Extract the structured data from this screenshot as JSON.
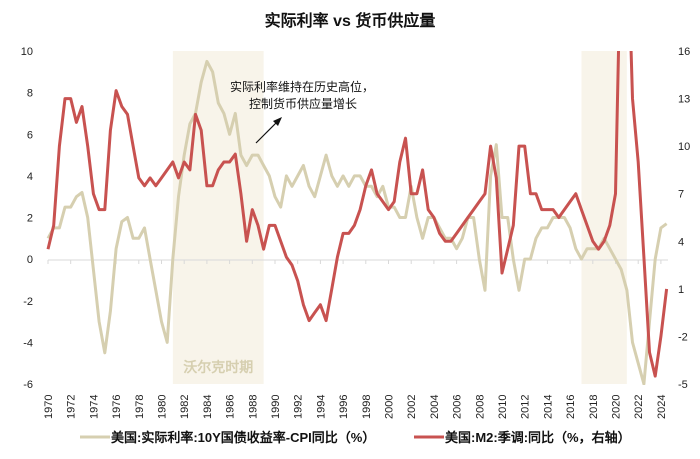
{
  "chart_data": {
    "type": "line",
    "title": "实际利率 vs 货币供应量",
    "x_ticks": [
      "1970",
      "1972",
      "1974",
      "1976",
      "1978",
      "1980",
      "1982",
      "1984",
      "1986",
      "1988",
      "1990",
      "1992",
      "1994",
      "1996",
      "1998",
      "2000",
      "2002",
      "2004",
      "2006",
      "2008",
      "2010",
      "2012",
      "2014",
      "2016",
      "2018",
      "2020",
      "2022",
      "2024"
    ],
    "y_left": {
      "range": [
        -6,
        10
      ],
      "ticks": [
        -6,
        -4,
        -2,
        0,
        2,
        4,
        6,
        8,
        10
      ]
    },
    "y_right": {
      "range": [
        -5,
        16
      ],
      "ticks": [
        -5,
        -2,
        1,
        4,
        7,
        10,
        13,
        16
      ]
    },
    "grid": false,
    "legend_position": "bottom",
    "shaded_periods": [
      {
        "start": 1981,
        "end": 1989,
        "label": "沃尔克时期"
      },
      {
        "start": 2017,
        "end": 2021,
        "label": ""
      }
    ],
    "annotation": {
      "lines": [
        "实际利率维持在历史高位，",
        "控制货币供应量增长"
      ]
    },
    "colors": {
      "real_rate": "#d6cfb0",
      "m2": "#c85250",
      "shade": "#f8f4ea"
    },
    "x": [
      1970,
      1970.5,
      1971,
      1971.5,
      1972,
      1972.5,
      1973,
      1973.5,
      1974,
      1974.5,
      1975,
      1975.5,
      1976,
      1976.5,
      1977,
      1977.5,
      1978,
      1978.5,
      1979,
      1979.5,
      1980,
      1980.5,
      1981,
      1981.5,
      1982,
      1982.5,
      1983,
      1983.5,
      1984,
      1984.5,
      1985,
      1985.5,
      1986,
      1986.5,
      1987,
      1987.5,
      1988,
      1988.5,
      1989,
      1989.5,
      1990,
      1990.5,
      1991,
      1991.5,
      1992,
      1992.5,
      1993,
      1993.5,
      1994,
      1994.5,
      1995,
      1995.5,
      1996,
      1996.5,
      1997,
      1997.5,
      1998,
      1998.5,
      1999,
      1999.5,
      2000,
      2000.5,
      2001,
      2001.5,
      2002,
      2002.5,
      2003,
      2003.5,
      2004,
      2004.5,
      2005,
      2005.5,
      2006,
      2006.5,
      2007,
      2007.5,
      2008,
      2008.5,
      2009,
      2009.5,
      2010,
      2010.5,
      2011,
      2011.5,
      2012,
      2012.5,
      2013,
      2013.5,
      2014,
      2014.5,
      2015,
      2015.5,
      2016,
      2016.5,
      2017,
      2017.5,
      2018,
      2018.5,
      2019,
      2019.5,
      2020,
      2020.5,
      2021,
      2021.5,
      2022,
      2022.5,
      2023,
      2023.5,
      2024,
      2024.5
    ],
    "series": [
      {
        "name": "美国:实际利率:10Y国债收益率-CPI同比（%）",
        "axis": "left",
        "values": [
          1.0,
          1.5,
          1.5,
          2.5,
          2.5,
          3.0,
          3.2,
          2.0,
          -0.5,
          -3.0,
          -4.5,
          -2.5,
          0.5,
          1.8,
          2.0,
          1.0,
          1.0,
          1.5,
          0,
          -1.5,
          -3.0,
          -4.0,
          0,
          3,
          5,
          6.5,
          7.0,
          8.5,
          9.5,
          9,
          7.5,
          7,
          6,
          7,
          5,
          4.5,
          5,
          5,
          4.5,
          4,
          3.0,
          2.5,
          4,
          3.5,
          4,
          4.5,
          3.5,
          3,
          4,
          5,
          4,
          3.5,
          4.0,
          3.5,
          4,
          4,
          3.5,
          3.5,
          3,
          3.5,
          2.5,
          2.5,
          2.0,
          2,
          3.5,
          2,
          1.0,
          2.0,
          2,
          1.5,
          1,
          1,
          0.5,
          1,
          2,
          2,
          0,
          -1.5,
          4,
          5.5,
          2,
          2,
          0,
          -1.5,
          0,
          0,
          1,
          1.5,
          1.5,
          2,
          2,
          2,
          1.5,
          0.5,
          0,
          0.5,
          0.5,
          0.5,
          1,
          0.5,
          0,
          -0.5,
          -1.5,
          -4.0,
          -5,
          -6,
          -3,
          0,
          1.5,
          1.7
        ]
      },
      {
        "name": "美国:M2:季调:同比（%，右轴）",
        "axis": "right",
        "values": [
          3.5,
          5,
          10,
          13,
          13,
          11.5,
          12.5,
          10,
          7,
          6,
          6,
          11,
          13.5,
          12.5,
          12,
          10,
          8,
          7.5,
          8,
          7.5,
          8,
          8.5,
          9,
          8,
          9,
          8.5,
          12,
          11,
          7.5,
          7.5,
          8.5,
          9,
          9,
          9.5,
          7,
          4,
          6,
          5,
          3.5,
          5,
          5,
          4,
          3,
          2.5,
          1.5,
          0,
          -1,
          -0.5,
          0,
          -1,
          1,
          3,
          4.5,
          4.5,
          5,
          6,
          7.5,
          8.5,
          7,
          6.5,
          6,
          6.5,
          9,
          10.5,
          7,
          7,
          8.5,
          6,
          5.5,
          4.5,
          4,
          4.0,
          4.5,
          5,
          5.5,
          6,
          6.5,
          7,
          10,
          8,
          2,
          3.5,
          5,
          10,
          10,
          7,
          7,
          6,
          6,
          6,
          5.5,
          6,
          6.5,
          7,
          6,
          5,
          4,
          3.5,
          4,
          5,
          7,
          24,
          25,
          13,
          9,
          3,
          -3,
          -4.5,
          -2,
          1
        ]
      }
    ]
  }
}
